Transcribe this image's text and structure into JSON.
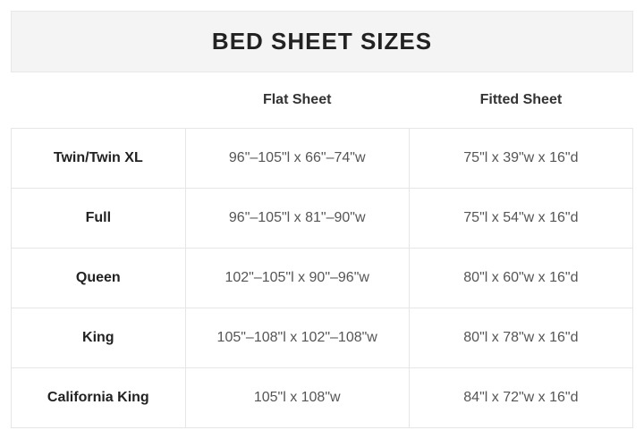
{
  "table": {
    "type": "table",
    "title": "BED SHEET SIZES",
    "title_fontsize": 26,
    "title_background": "#f4f4f4",
    "title_border": "#e8e8e8",
    "cell_border_color": "#e6e6e6",
    "text_color": "#333333",
    "rowheader_color": "#222222",
    "cell_text_color": "#555555",
    "column_widths_pct": [
      28,
      36,
      36
    ],
    "columns": [
      "",
      "Flat Sheet",
      "Fitted Sheet"
    ],
    "rows": [
      [
        "Twin/Twin XL",
        "96\"–105\"l x 66\"–74\"w",
        "75\"l x 39\"w x 16\"d"
      ],
      [
        "Full",
        "96\"–105\"l x 81\"–90\"w",
        "75\"l x 54\"w x 16\"d"
      ],
      [
        "Queen",
        "102\"–105\"l x 90\"–96\"w",
        "80\"l x 60\"w x 16\"d"
      ],
      [
        "King",
        "105\"–108\"l x 102\"–108\"w",
        "80\"l x 78\"w x 16\"d"
      ],
      [
        "California King",
        "105\"l x 108\"w",
        "84\"l x 72\"w x 16\"d"
      ]
    ]
  }
}
